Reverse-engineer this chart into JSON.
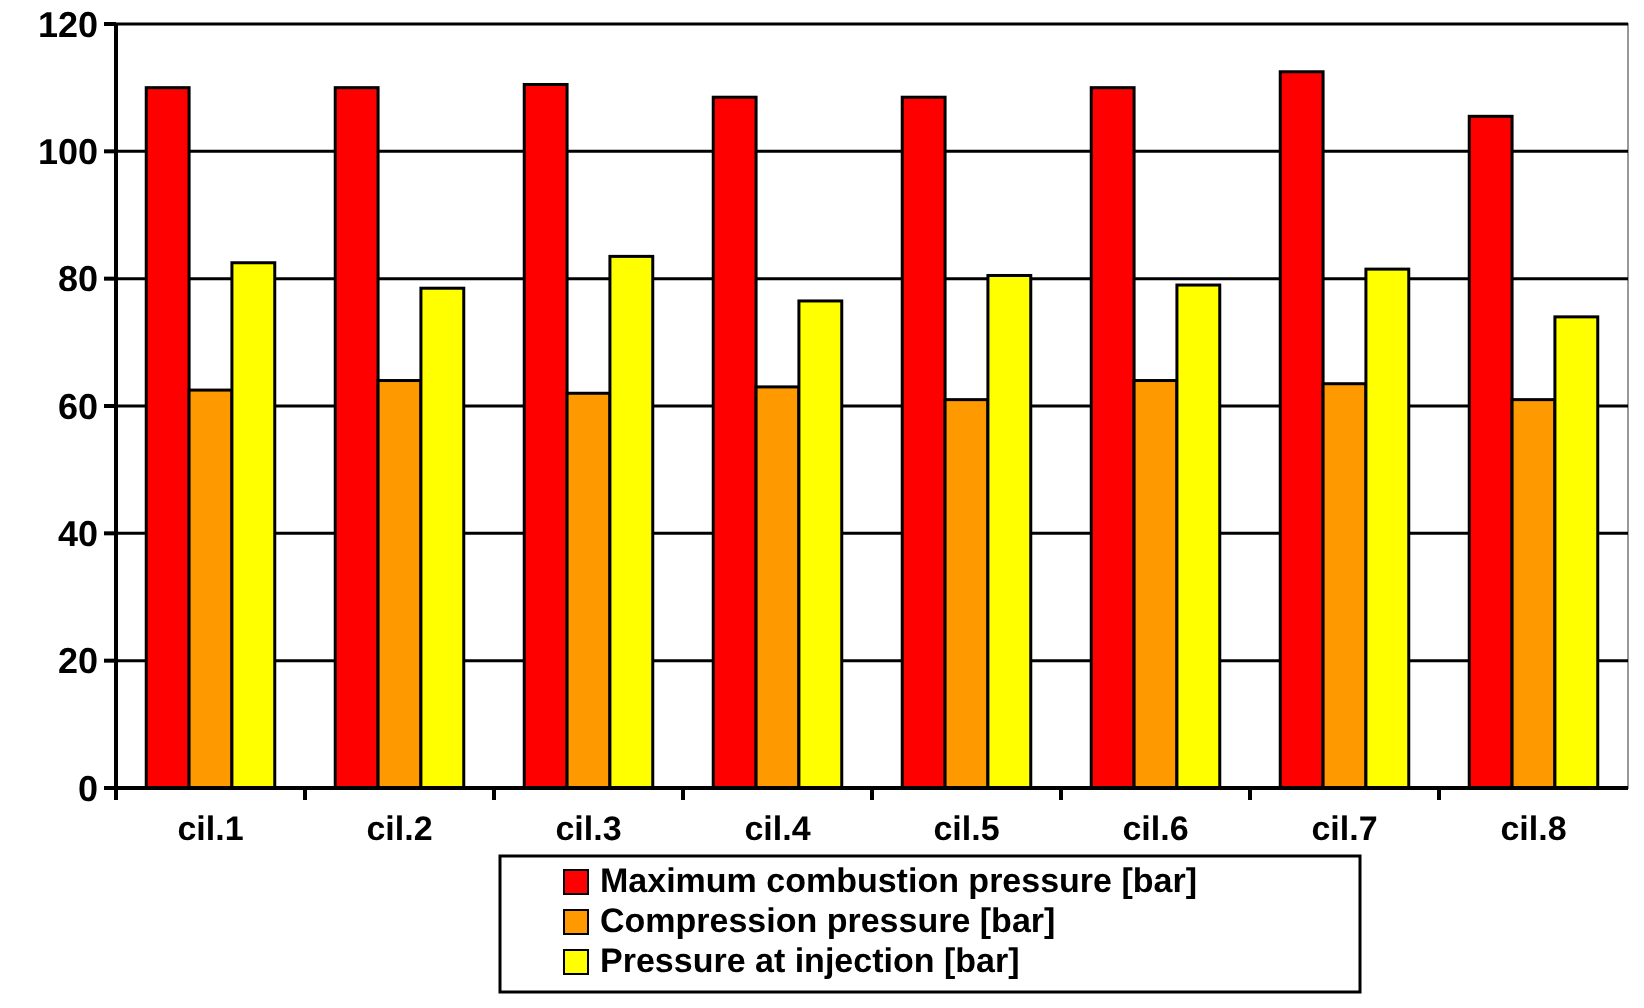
{
  "chart_data": {
    "type": "bar",
    "categories": [
      "cil.1",
      "cil.2",
      "cil.3",
      "cil.4",
      "cil.5",
      "cil.6",
      "cil.7",
      "cil.8"
    ],
    "series": [
      {
        "name": "Maximum combustion pressure [bar]",
        "color": "#ff0000",
        "values": [
          110,
          110,
          110.5,
          108.5,
          108.5,
          110,
          112.5,
          105.5
        ]
      },
      {
        "name": "Compression pressure [bar]",
        "color": "#ff9900",
        "values": [
          62.5,
          64,
          62,
          63,
          61,
          64,
          63.5,
          61
        ]
      },
      {
        "name": "Pressure at injection [bar]",
        "color": "#ffff00",
        "values": [
          82.5,
          78.5,
          83.5,
          76.5,
          80.5,
          79,
          81.5,
          74
        ]
      }
    ],
    "ylim": [
      0,
      120
    ],
    "yticks": [
      0,
      20,
      40,
      60,
      80,
      100,
      120
    ],
    "grid": "y",
    "legend": "bottom"
  }
}
